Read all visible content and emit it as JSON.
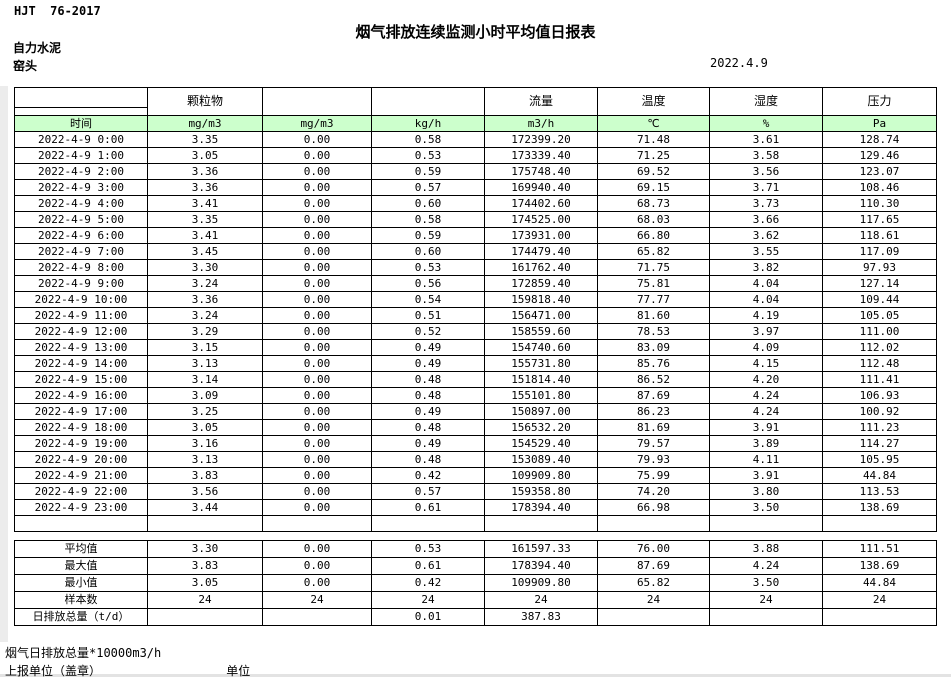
{
  "document": {
    "code": "HJT  76-2017",
    "title": "烟气排放连续监测小时平均值日报表",
    "company": "自力水泥",
    "station": "窑头",
    "date": "2022.4.9"
  },
  "table": {
    "header_fill": "#ccffcc",
    "group_headers": [
      "",
      "颗粒物",
      "",
      "",
      "流量",
      "温度",
      "湿度",
      "压力"
    ],
    "unit_row": [
      "时间",
      "mg/m3",
      "mg/m3",
      "kg/h",
      "m3/h",
      "℃",
      "%",
      "Pa"
    ],
    "rows": [
      [
        "2022-4-9 0:00",
        "3.35",
        "0.00",
        "0.58",
        "172399.20",
        "71.48",
        "3.61",
        "128.74"
      ],
      [
        "2022-4-9 1:00",
        "3.05",
        "0.00",
        "0.53",
        "173339.40",
        "71.25",
        "3.58",
        "129.46"
      ],
      [
        "2022-4-9 2:00",
        "3.36",
        "0.00",
        "0.59",
        "175748.40",
        "69.52",
        "3.56",
        "123.07"
      ],
      [
        "2022-4-9 3:00",
        "3.36",
        "0.00",
        "0.57",
        "169940.40",
        "69.15",
        "3.71",
        "108.46"
      ],
      [
        "2022-4-9 4:00",
        "3.41",
        "0.00",
        "0.60",
        "174402.60",
        "68.73",
        "3.73",
        "110.30"
      ],
      [
        "2022-4-9 5:00",
        "3.35",
        "0.00",
        "0.58",
        "174525.00",
        "68.03",
        "3.66",
        "117.65"
      ],
      [
        "2022-4-9 6:00",
        "3.41",
        "0.00",
        "0.59",
        "173931.00",
        "66.80",
        "3.62",
        "118.61"
      ],
      [
        "2022-4-9 7:00",
        "3.45",
        "0.00",
        "0.60",
        "174479.40",
        "65.82",
        "3.55",
        "117.09"
      ],
      [
        "2022-4-9 8:00",
        "3.30",
        "0.00",
        "0.53",
        "161762.40",
        "71.75",
        "3.82",
        "97.93"
      ],
      [
        "2022-4-9 9:00",
        "3.24",
        "0.00",
        "0.56",
        "172859.40",
        "75.81",
        "4.04",
        "127.14"
      ],
      [
        "2022-4-9 10:00",
        "3.36",
        "0.00",
        "0.54",
        "159818.40",
        "77.77",
        "4.04",
        "109.44"
      ],
      [
        "2022-4-9 11:00",
        "3.24",
        "0.00",
        "0.51",
        "156471.00",
        "81.60",
        "4.19",
        "105.05"
      ],
      [
        "2022-4-9 12:00",
        "3.29",
        "0.00",
        "0.52",
        "158559.60",
        "78.53",
        "3.97",
        "111.00"
      ],
      [
        "2022-4-9 13:00",
        "3.15",
        "0.00",
        "0.49",
        "154740.60",
        "83.09",
        "4.09",
        "112.02"
      ],
      [
        "2022-4-9 14:00",
        "3.13",
        "0.00",
        "0.49",
        "155731.80",
        "85.76",
        "4.15",
        "112.48"
      ],
      [
        "2022-4-9 15:00",
        "3.14",
        "0.00",
        "0.48",
        "151814.40",
        "86.52",
        "4.20",
        "111.41"
      ],
      [
        "2022-4-9 16:00",
        "3.09",
        "0.00",
        "0.48",
        "155101.80",
        "87.69",
        "4.24",
        "106.93"
      ],
      [
        "2022-4-9 17:00",
        "3.25",
        "0.00",
        "0.49",
        "150897.00",
        "86.23",
        "4.24",
        "100.92"
      ],
      [
        "2022-4-9 18:00",
        "3.05",
        "0.00",
        "0.48",
        "156532.20",
        "81.69",
        "3.91",
        "111.23"
      ],
      [
        "2022-4-9 19:00",
        "3.16",
        "0.00",
        "0.49",
        "154529.40",
        "79.57",
        "3.89",
        "114.27"
      ],
      [
        "2022-4-9 20:00",
        "3.13",
        "0.00",
        "0.48",
        "153089.40",
        "79.93",
        "4.11",
        "105.95"
      ],
      [
        "2022-4-9 21:00",
        "3.83",
        "0.00",
        "0.42",
        "109909.80",
        "75.99",
        "3.91",
        "44.84"
      ],
      [
        "2022-4-9 22:00",
        "3.56",
        "0.00",
        "0.57",
        "159358.80",
        "74.20",
        "3.80",
        "113.53"
      ],
      [
        "2022-4-9 23:00",
        "3.44",
        "0.00",
        "0.61",
        "178394.40",
        "66.98",
        "3.50",
        "138.69"
      ]
    ],
    "summary_rows": [
      [
        "平均值",
        "3.30",
        "0.00",
        "0.53",
        "161597.33",
        "76.00",
        "3.88",
        "111.51"
      ],
      [
        "最大值",
        "3.83",
        "0.00",
        "0.61",
        "178394.40",
        "87.69",
        "4.24",
        "138.69"
      ],
      [
        "最小值",
        "3.05",
        "0.00",
        "0.42",
        "109909.80",
        "65.82",
        "3.50",
        "44.84"
      ],
      [
        "样本数",
        "24",
        "24",
        "24",
        "24",
        "24",
        "24",
        "24"
      ],
      [
        "日排放总量（t/d）",
        "",
        "",
        "0.01",
        "387.83",
        "",
        "",
        ""
      ]
    ]
  },
  "footer": {
    "note": "烟气日排放总量*10000m3/h",
    "report_unit_label": "上报单位（盖章）",
    "unit_label": "单位"
  }
}
